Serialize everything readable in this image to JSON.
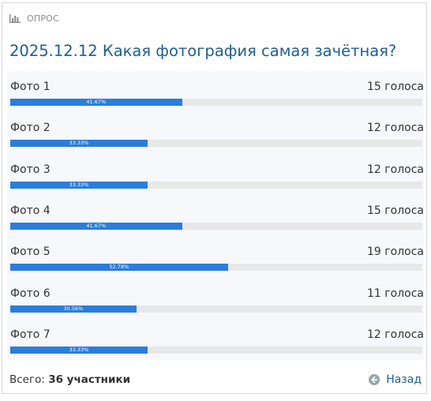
{
  "header": {
    "section_label": "ОПРОС",
    "icon": "bar-chart-icon"
  },
  "poll": {
    "question": "2025.12.12 Какая фотография самая зачётная?",
    "options": [
      {
        "label": "Фото 1",
        "votes_text": "15 голоса",
        "percent_text": "41.67%",
        "percent": 41.67
      },
      {
        "label": "Фото 2",
        "votes_text": "12 голоса",
        "percent_text": "33.33%",
        "percent": 33.33
      },
      {
        "label": "Фото 3",
        "votes_text": "12 голоса",
        "percent_text": "33.33%",
        "percent": 33.33
      },
      {
        "label": "Фото 4",
        "votes_text": "15 голоса",
        "percent_text": "41.67%",
        "percent": 41.67
      },
      {
        "label": "Фото 5",
        "votes_text": "19 голоса",
        "percent_text": "52.78%",
        "percent": 52.78
      },
      {
        "label": "Фото 6",
        "votes_text": "11 голоса",
        "percent_text": "30.56%",
        "percent": 30.56
      },
      {
        "label": "Фото 7",
        "votes_text": "12 голоса",
        "percent_text": "33.33%",
        "percent": 33.33
      }
    ]
  },
  "footer": {
    "total_prefix": "Всего:",
    "total_value": "36 участники",
    "back_label": "Назад",
    "back_icon": "arrow-left-circle-icon"
  },
  "colors": {
    "accent": "#205d91",
    "bar_fill": "#2a7ddb",
    "bar_track": "#e8e8e8"
  }
}
